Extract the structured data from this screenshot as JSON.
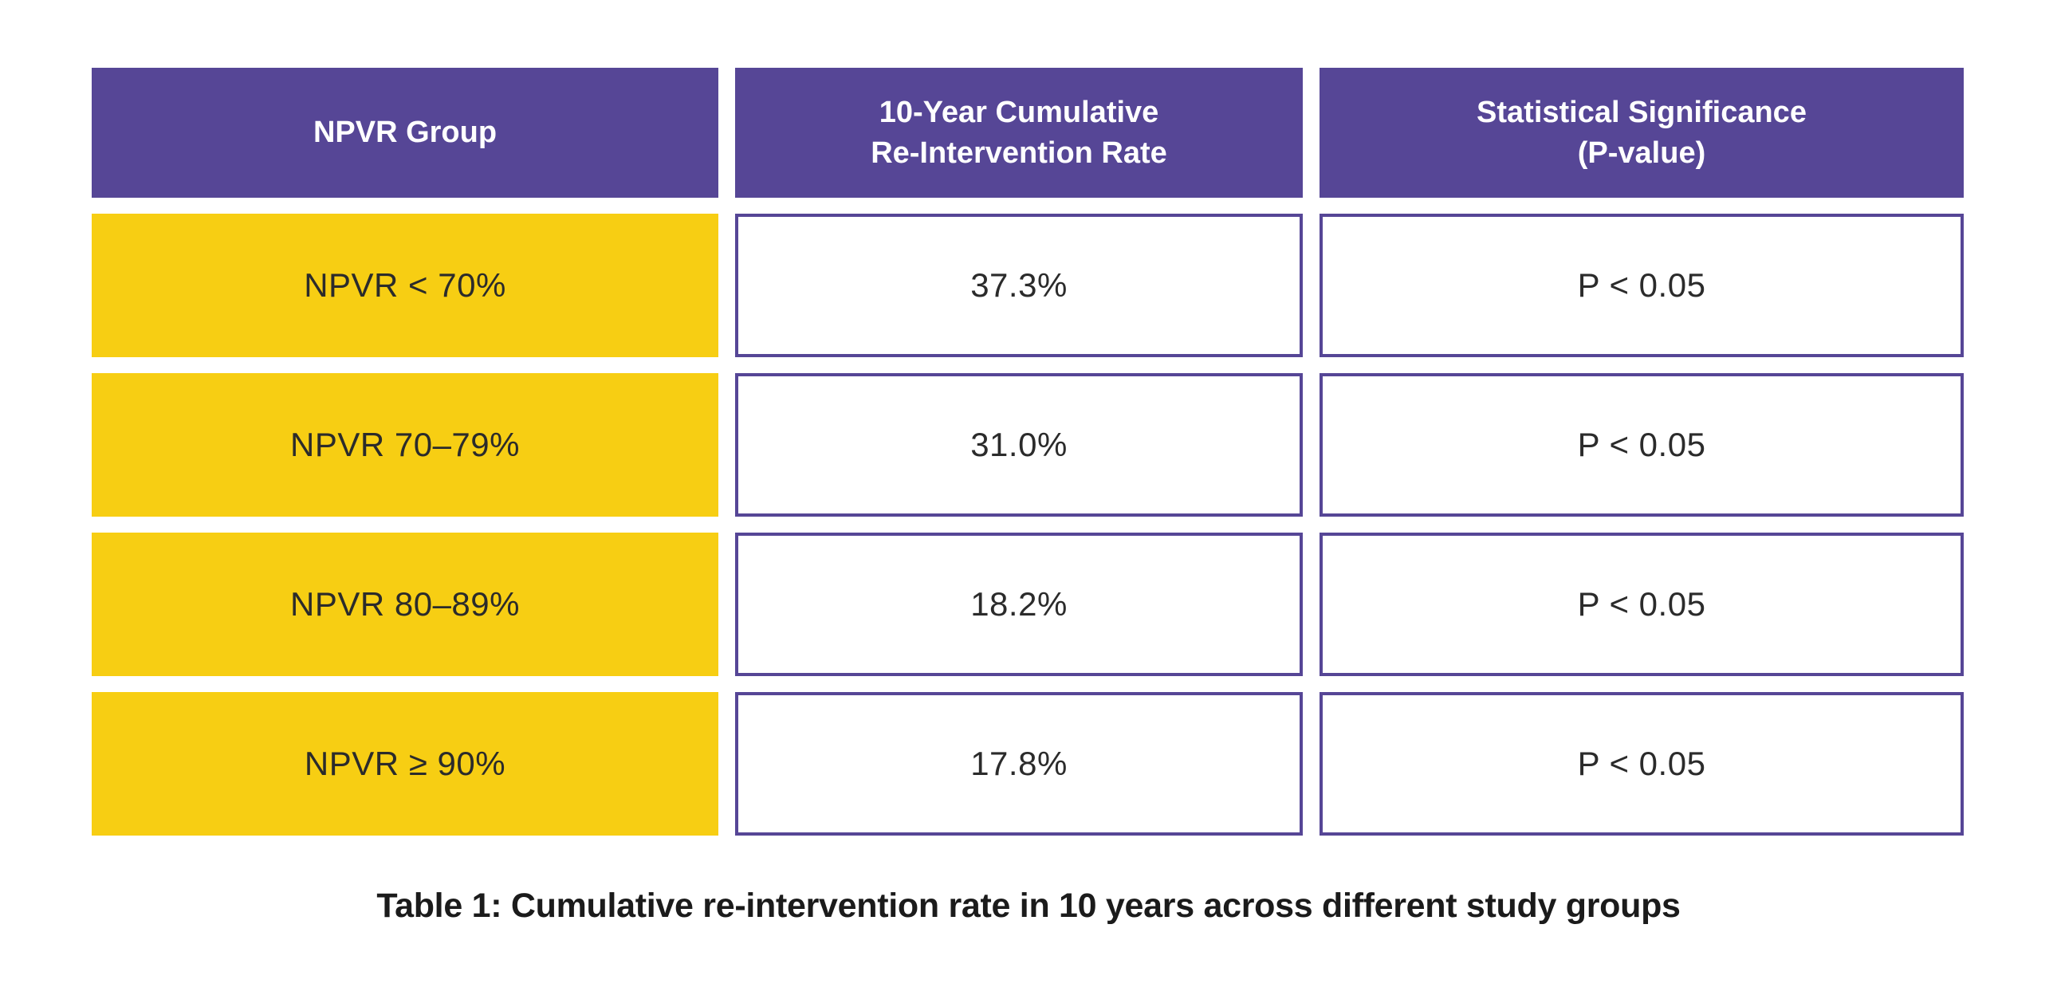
{
  "table": {
    "headers": [
      {
        "label": "NPVR Group"
      },
      {
        "label": "10-Year Cumulative\nRe-Intervention Rate"
      },
      {
        "label": "Statistical Significance\n(P-value)"
      }
    ],
    "rows": [
      {
        "group": "NPVR < 70%",
        "rate": "37.3%",
        "significance": "P < 0.05"
      },
      {
        "group": "NPVR 70–79%",
        "rate": "31.0%",
        "significance": "P < 0.05"
      },
      {
        "group": "NPVR 80–89%",
        "rate": "18.2%",
        "significance": "P < 0.05"
      },
      {
        "group": "NPVR ≥ 90%",
        "rate": "17.8%",
        "significance": "P < 0.05"
      }
    ]
  },
  "caption": "Table 1: Cumulative re-intervention rate in 10 years across different study groups",
  "colors": {
    "header_bg": "#564696",
    "header_text": "#ffffff",
    "group_bg": "#f7ce13",
    "cell_border": "#564696",
    "cell_text": "#2b2b2b",
    "caption_text": "#1b1b1b",
    "page_bg": "#ffffff"
  },
  "chart_data": {
    "type": "table",
    "title": "Table 1: Cumulative re-intervention rate in 10 years across different study groups",
    "columns": [
      "NPVR Group",
      "10-Year Cumulative Re-Intervention Rate",
      "Statistical Significance (P-value)"
    ],
    "rows": [
      [
        "NPVR < 70%",
        "37.3%",
        "P < 0.05"
      ],
      [
        "NPVR 70–79%",
        "31.0%",
        "P < 0.05"
      ],
      [
        "NPVR 80–89%",
        "18.2%",
        "P < 0.05"
      ],
      [
        "NPVR ≥ 90%",
        "17.8%",
        "P < 0.05"
      ]
    ],
    "values_numeric_percent": [
      37.3,
      31.0,
      18.2,
      17.8
    ]
  }
}
